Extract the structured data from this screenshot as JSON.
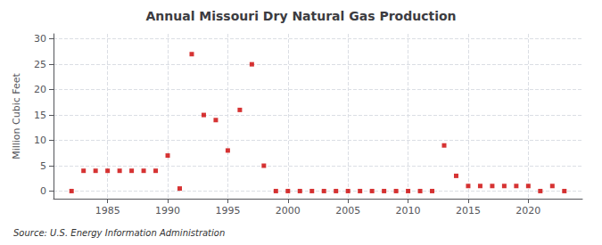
{
  "chart_data": {
    "type": "scatter",
    "title": "Annual Missouri Dry Natural Gas Production",
    "ylabel": "Million Cubic Feet",
    "source": "Source: U.S. Energy Information Administration",
    "x": [
      1982,
      1983,
      1984,
      1985,
      1986,
      1987,
      1988,
      1989,
      1990,
      1991,
      1992,
      1993,
      1994,
      1995,
      1996,
      1997,
      1998,
      1999,
      2000,
      2001,
      2002,
      2003,
      2004,
      2005,
      2006,
      2007,
      2008,
      2009,
      2010,
      2011,
      2012,
      2013,
      2014,
      2015,
      2016,
      2017,
      2018,
      2019,
      2020,
      2021,
      2022,
      2023
    ],
    "values": [
      0,
      4,
      4,
      4,
      4,
      4,
      4,
      4,
      7,
      0.5,
      27,
      15,
      14,
      8,
      16,
      25,
      5,
      0,
      0,
      0,
      0,
      0,
      0,
      0,
      0,
      0,
      0,
      0,
      0,
      0,
      0,
      9,
      3,
      1,
      1,
      1,
      1,
      1,
      1,
      0,
      1,
      0
    ],
    "color": "#cc0000",
    "marker": "square",
    "xlim": [
      1980.5,
      2024.5
    ],
    "xticks": [
      1985,
      1990,
      1995,
      2000,
      2005,
      2010,
      2015,
      2020
    ],
    "ylim": [
      -1.5,
      31
    ],
    "yticks": [
      0,
      5,
      10,
      15,
      20,
      25,
      30
    ],
    "grid": true
  }
}
